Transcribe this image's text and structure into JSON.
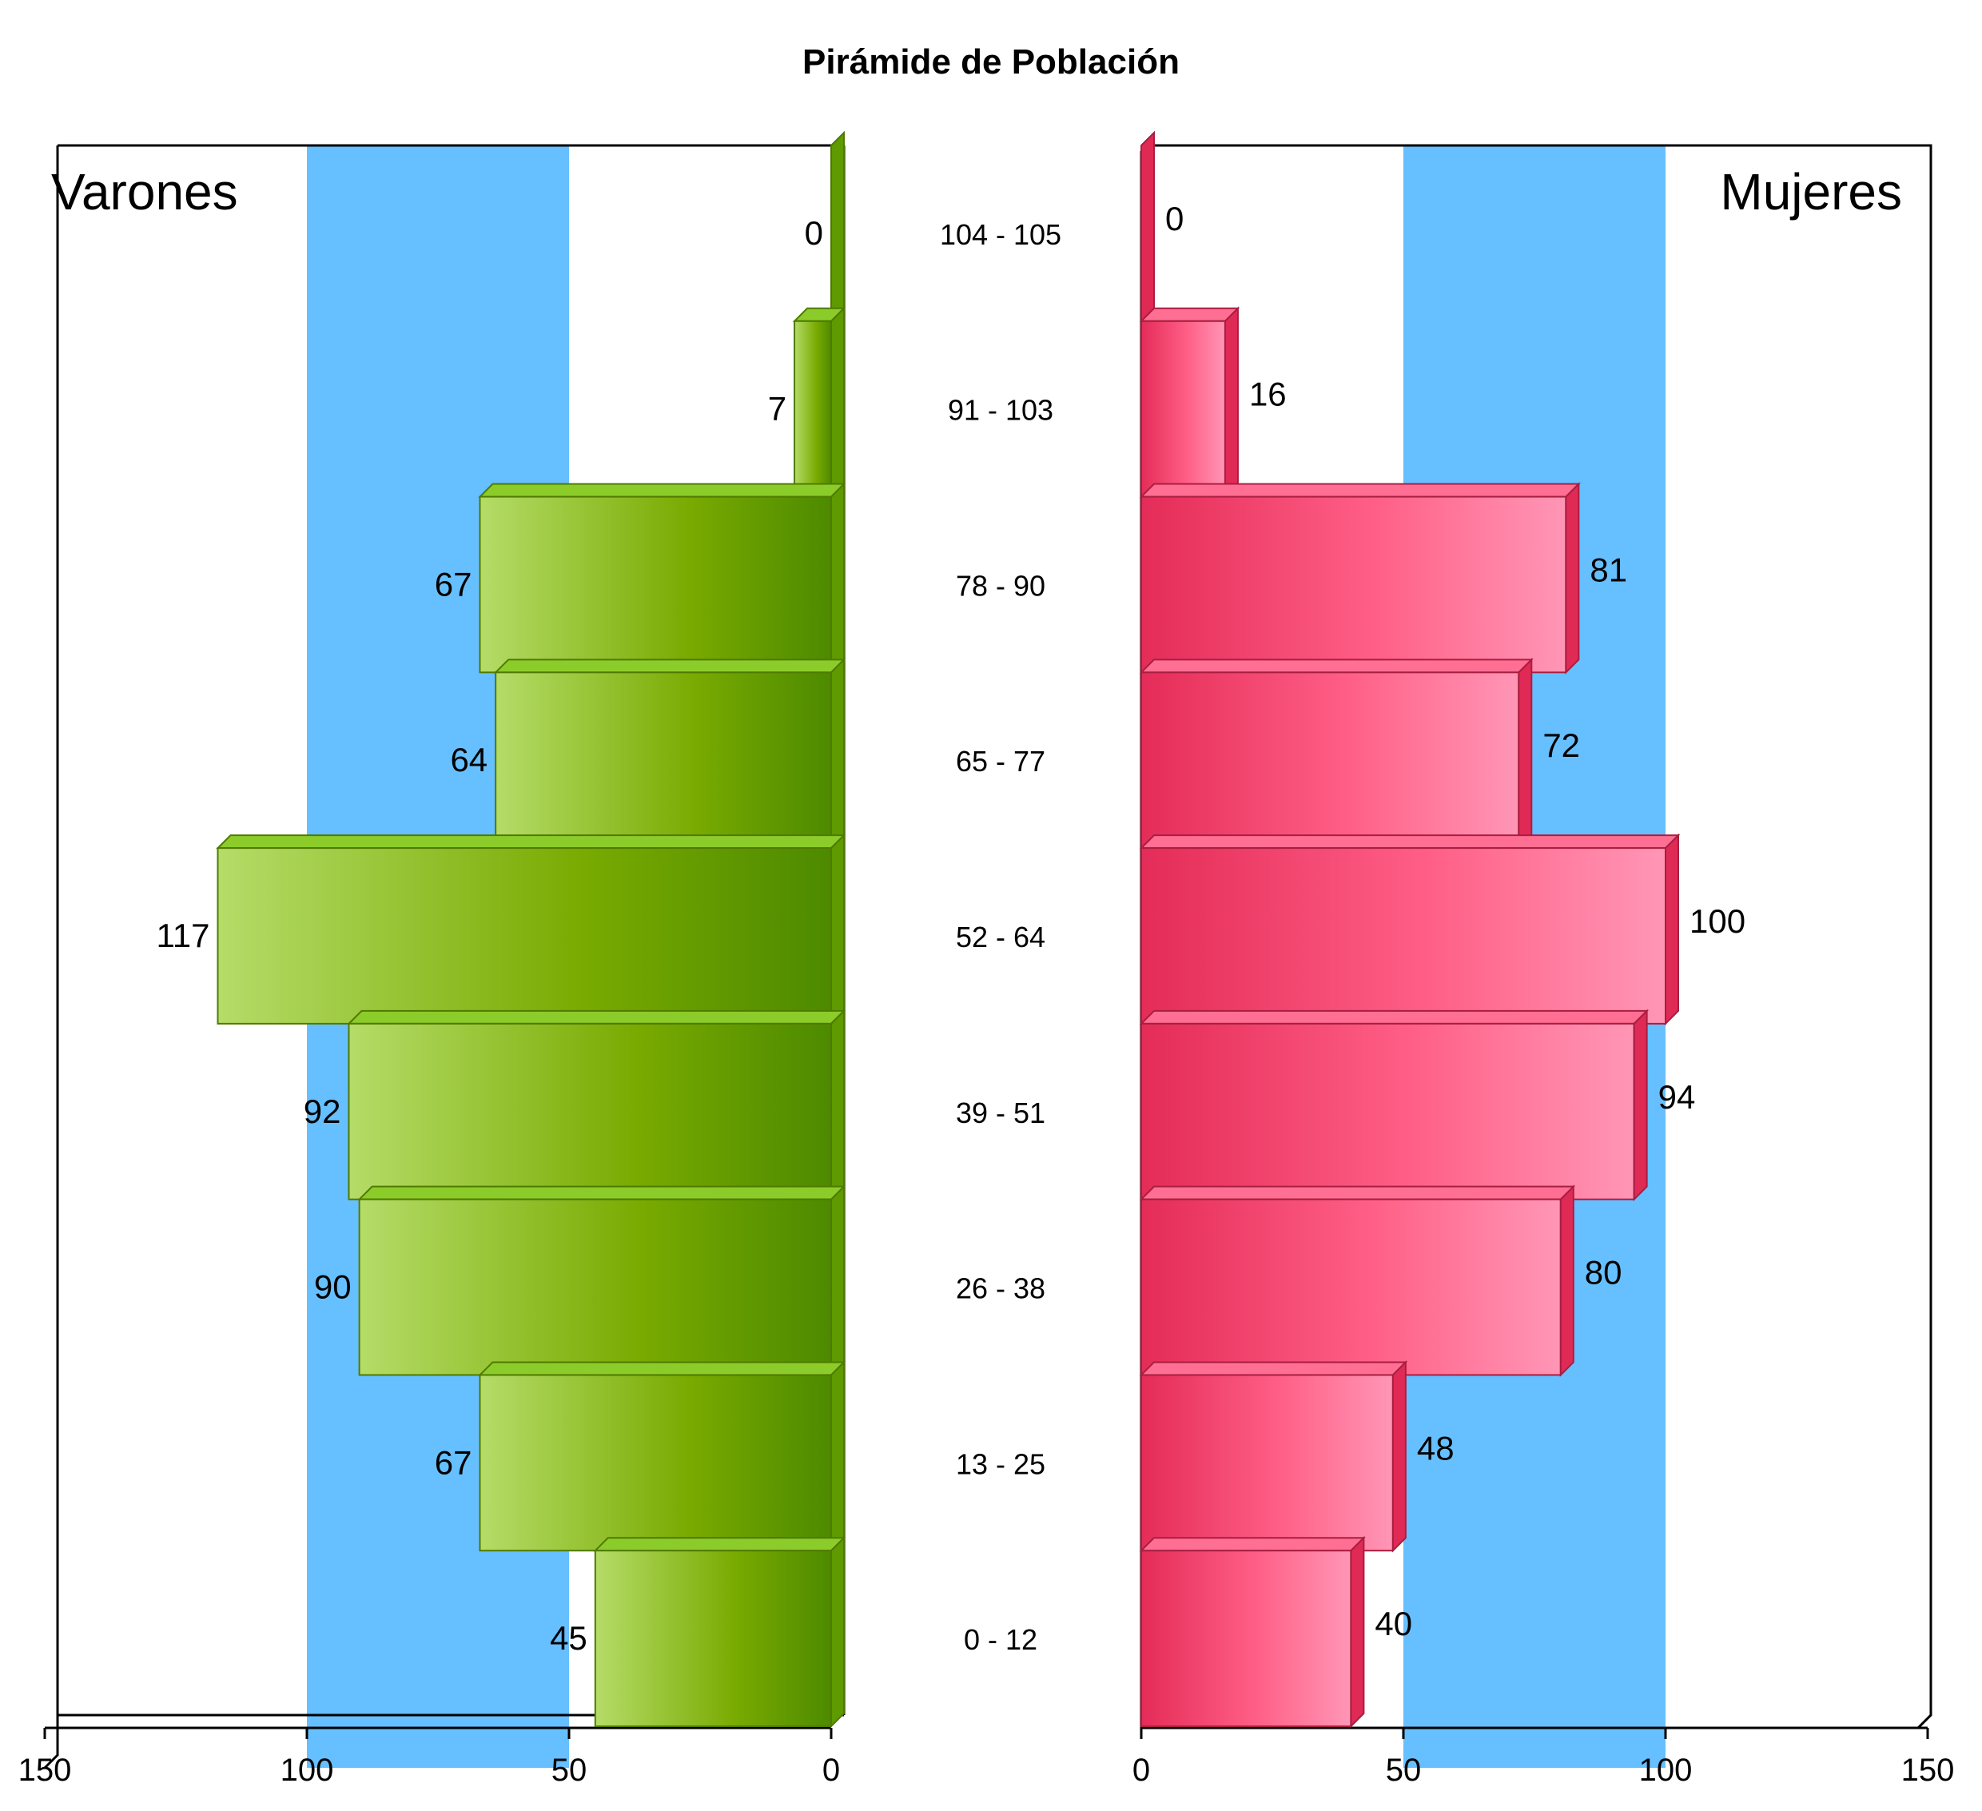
{
  "chart_data": {
    "type": "bar",
    "orientation": "horizontal",
    "title": "Pirámide de Población",
    "categories": [
      "104 - 105",
      "91 - 103",
      "78 - 90",
      "65 - 77",
      "52 - 64",
      "39 - 51",
      "26 - 38",
      "13 - 25",
      "0 - 12"
    ],
    "series": [
      {
        "name": "Varones",
        "values": [
          0,
          7,
          67,
          64,
          117,
          92,
          90,
          67,
          45
        ],
        "color": "#6fa800"
      },
      {
        "name": "Mujeres",
        "values": [
          0,
          16,
          81,
          72,
          100,
          94,
          80,
          48,
          40
        ],
        "color": "#f0436e"
      }
    ],
    "xlim": [
      0,
      150
    ],
    "x_ticks": [
      "150",
      "100",
      "50",
      "0"
    ],
    "x_ticks_right": [
      "0",
      "50",
      "100",
      "150"
    ],
    "band_range": [
      50,
      100
    ],
    "band_color": "#66bfff",
    "grid": false
  }
}
